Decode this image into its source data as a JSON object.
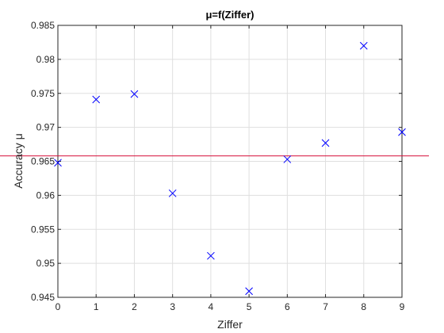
{
  "chart_data": {
    "type": "scatter",
    "title": "μ=f(Ziffer)",
    "xlabel": "Ziffer",
    "ylabel": "Accuracy μ",
    "xlim": [
      0,
      9
    ],
    "ylim": [
      0.945,
      0.985
    ],
    "x_ticks": [
      "0",
      "1",
      "2",
      "3",
      "4",
      "5",
      "6",
      "7",
      "8",
      "9"
    ],
    "y_ticks": [
      "0.945",
      "0.95",
      "0.955",
      "0.96",
      "0.965",
      "0.97",
      "0.975",
      "0.98",
      "0.985"
    ],
    "grid": true,
    "marker": "x",
    "series": [
      {
        "x": [
          0,
          1,
          2,
          3,
          4,
          5,
          6,
          7,
          8,
          9
        ],
        "y": [
          0.9648,
          0.9741,
          0.9749,
          0.9603,
          0.9511,
          0.9459,
          0.9653,
          0.9677,
          0.982,
          0.9693
        ],
        "color": "#0000ff"
      }
    ],
    "reference_line": {
      "y": 0.9658,
      "color": "#d6103b"
    }
  }
}
